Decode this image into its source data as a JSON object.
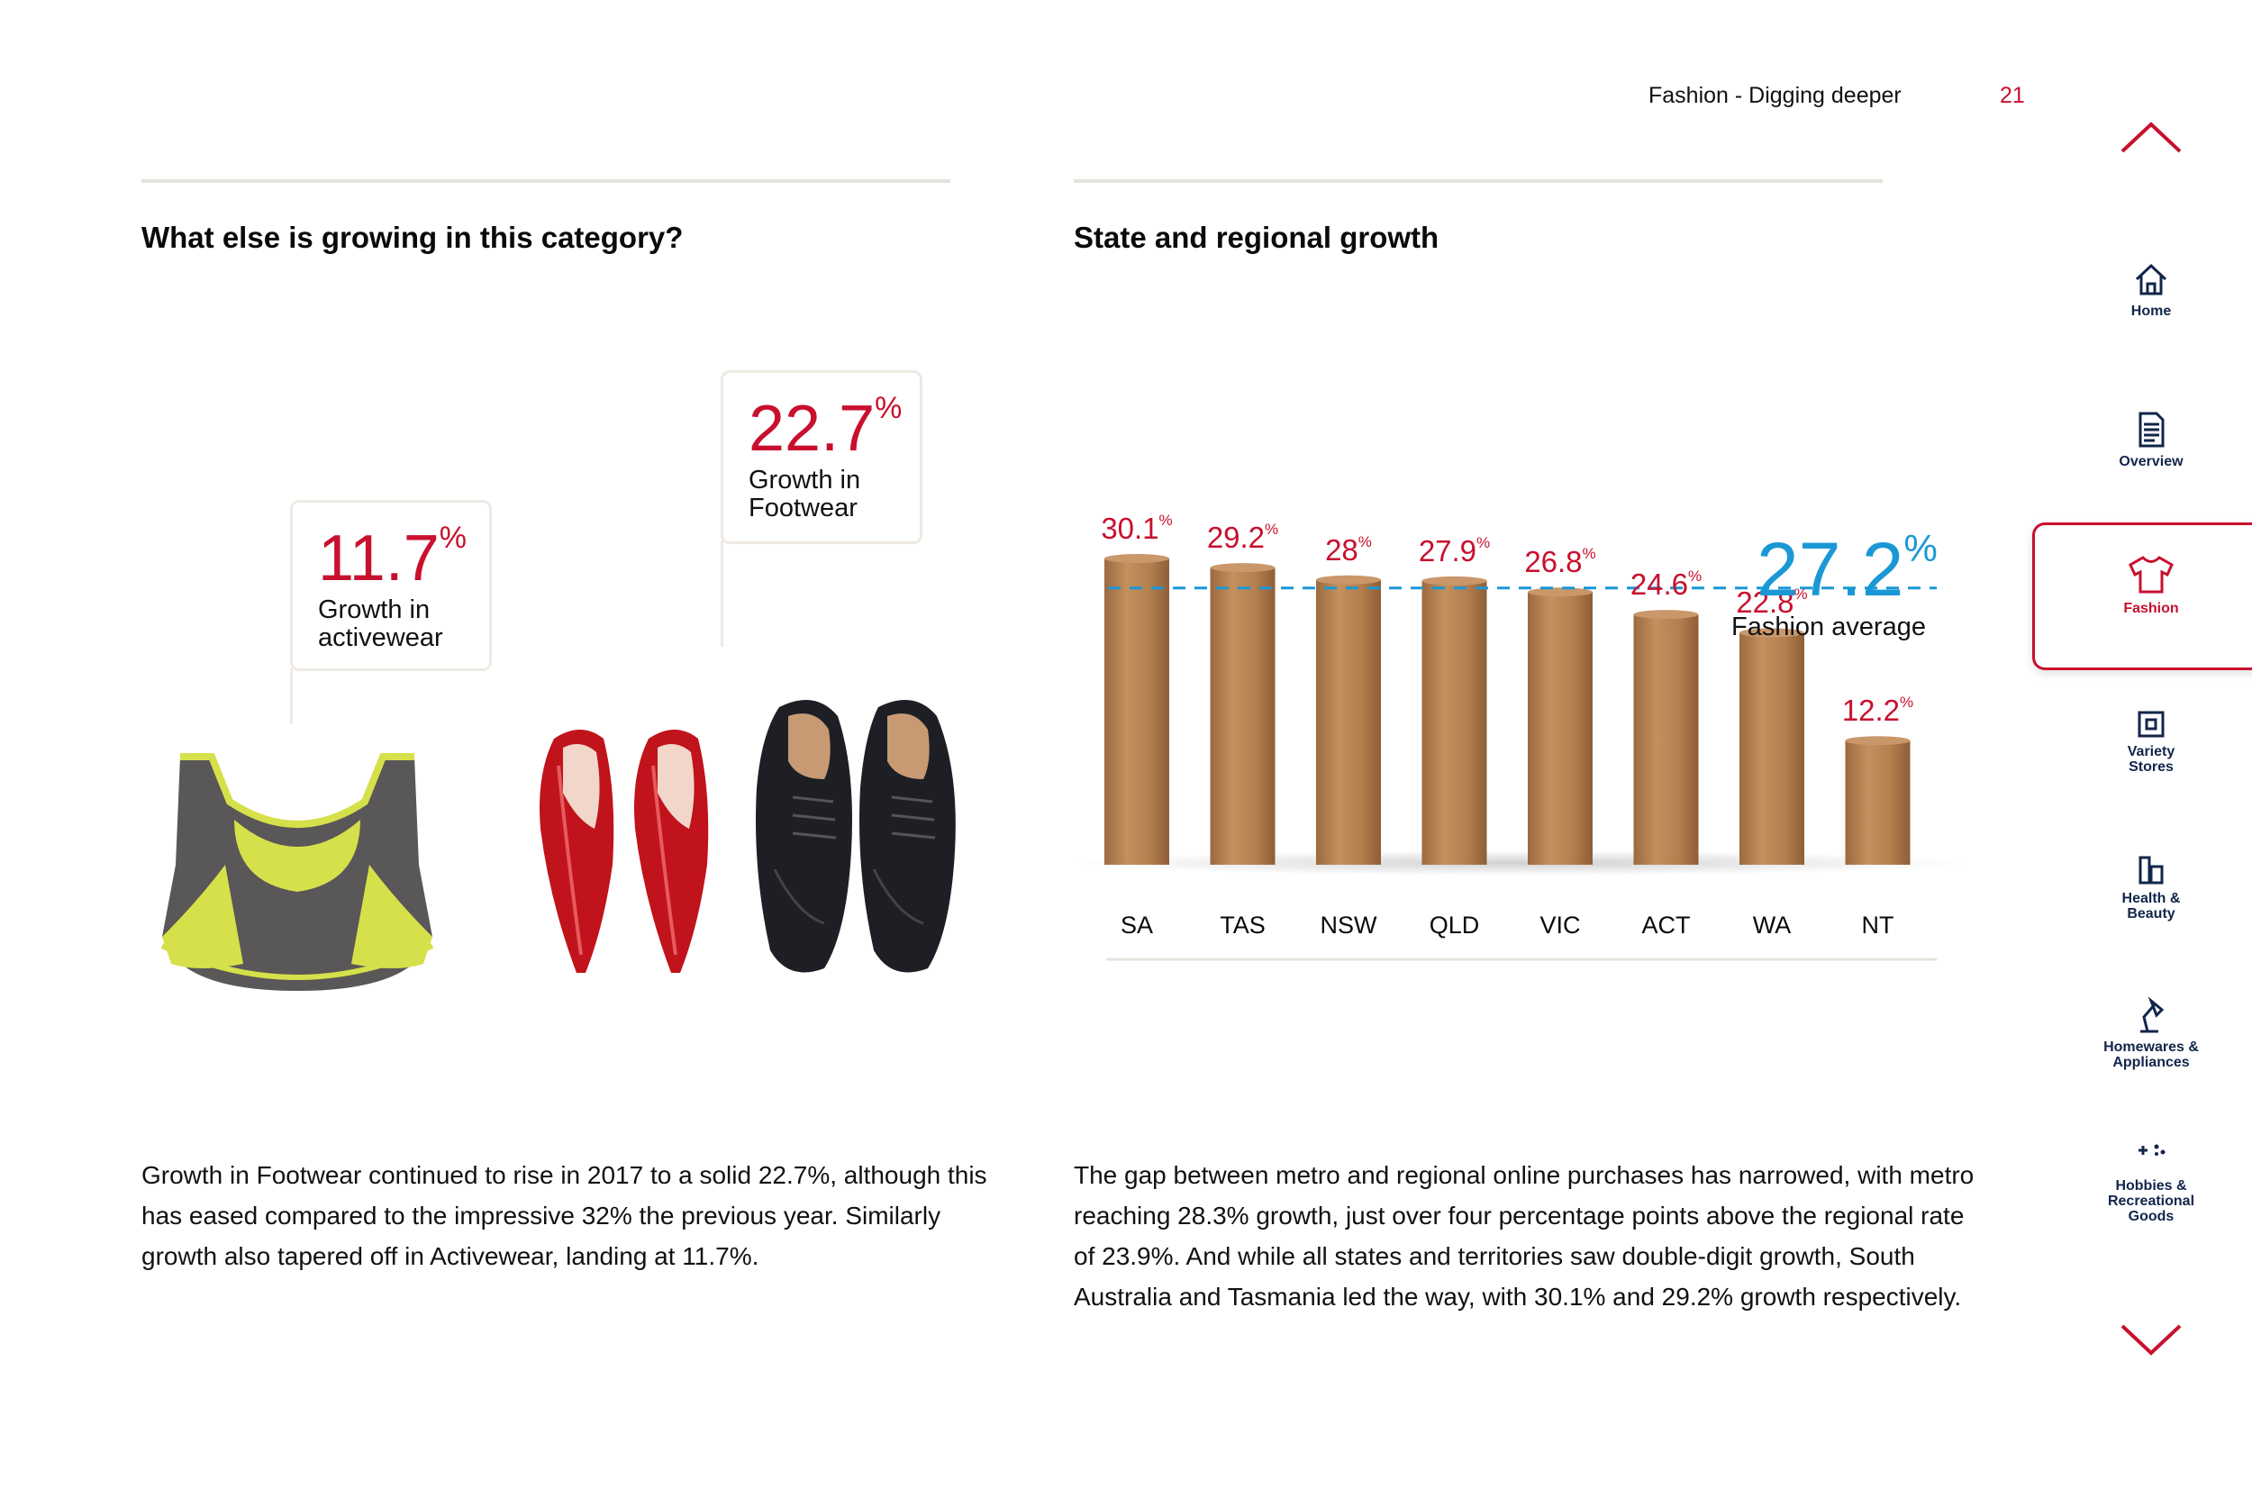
{
  "header": {
    "section": "Fashion - Digging deeper",
    "page": "21"
  },
  "left": {
    "heading": "What else is growing in this category?",
    "callout_activewear": {
      "value": "11.7",
      "unit": "%",
      "label_line1": "Growth in",
      "label_line2": "activewear"
    },
    "callout_footwear": {
      "value": "22.7",
      "unit": "%",
      "label_line1": "Growth in",
      "label_line2": "Footwear"
    },
    "paragraph": "Growth in Footwear continued to rise in 2017 to a solid 22.7%, although this has eased compared to the impressive 32% the previous year. Similarly growth also tapered off in Activewear, landing at 11.7%."
  },
  "right": {
    "heading": "State and regional growth",
    "average": {
      "value": "27.2",
      "unit": "%",
      "label": "Fashion average"
    },
    "paragraph": "The gap between metro and regional online purchases has narrowed, with metro reaching 28.3% growth, just over four percentage points above the regional rate of 23.9%. And while all states and territories saw double-digit growth, South Australia and Tasmania led the way, with 30.1% and 29.2% growth respectively."
  },
  "chart_data": {
    "type": "bar",
    "title": "State and regional growth",
    "categories": [
      "SA",
      "TAS",
      "NSW",
      "QLD",
      "VIC",
      "ACT",
      "WA",
      "NT"
    ],
    "values": [
      30.1,
      29.2,
      28,
      27.9,
      26.8,
      24.6,
      22.8,
      12.2
    ],
    "value_labels": [
      "30.1",
      "29.2",
      "28",
      "27.9",
      "26.8",
      "24.6",
      "22.8",
      "12.2"
    ],
    "unit": "%",
    "reference_line": {
      "value": 27.2,
      "label": "Fashion average",
      "style": "dashed",
      "color": "#1a98d5"
    },
    "bar_color": "#b07a4c",
    "label_color": "#c8102e"
  },
  "sidebar": {
    "items": [
      {
        "label": "Home",
        "icon": "home-icon"
      },
      {
        "label": "Overview",
        "icon": "document-icon"
      },
      {
        "label": "Fashion",
        "icon": "tshirt-icon",
        "active": true
      },
      {
        "label_line1": "Variety",
        "label_line2": "Stores",
        "icon": "variety-stores-icon"
      },
      {
        "label_line1": "Health &",
        "label_line2": "Beauty",
        "icon": "health-beauty-icon"
      },
      {
        "label_line1": "Homewares &",
        "label_line2": "Appliances",
        "icon": "lamp-icon"
      },
      {
        "label_line1": "Hobbies &",
        "label_line2": "Recreational",
        "label_line3": "Goods",
        "icon": "gamepad-icon"
      }
    ]
  },
  "colors": {
    "accent_red": "#c8102e",
    "accent_blue": "#1a98d5",
    "navy": "#12264a"
  }
}
